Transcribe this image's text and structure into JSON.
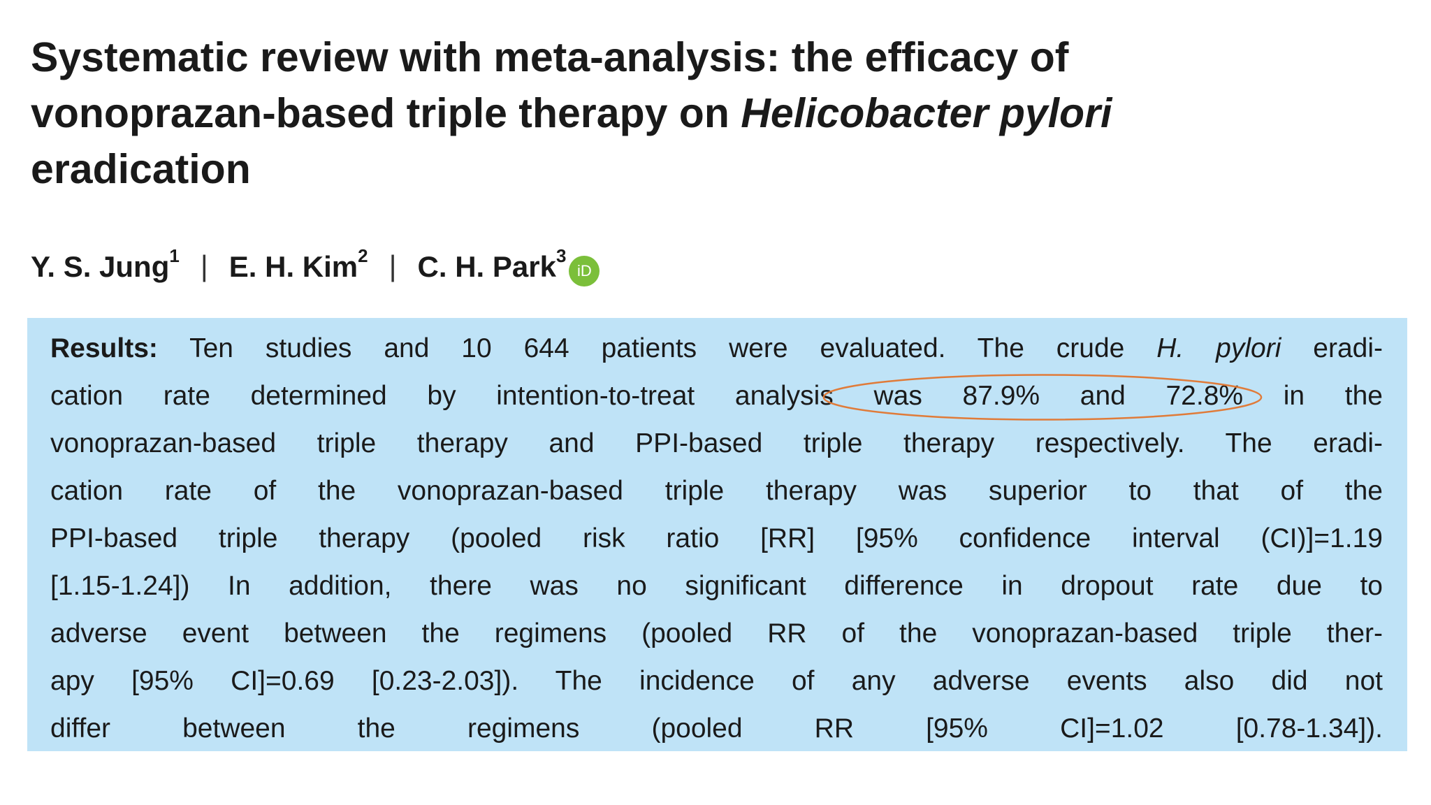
{
  "header": {
    "title_lines": [
      "Systematic review with meta-analysis: the efficacy of",
      [
        "vonoprazan-based triple therapy on ",
        "Helicobacter pylori"
      ],
      "eradication"
    ]
  },
  "authors": [
    {
      "name": "Y. S. Jung",
      "affiliation": "1"
    },
    {
      "name": "E. H. Kim",
      "affiliation": "2"
    },
    {
      "name": "C. H. Park",
      "affiliation": "3"
    }
  ],
  "orcid_icon": "iD",
  "results": {
    "lines": [
      [
        "Results:",
        " Ten studies and 10 644 patients were evaluated. The crude ",
        "H. pylori",
        " eradi-"
      ],
      [
        "cation rate determined by intention-to-treat analysis",
        " was 87.9% and 72.8%",
        " in the"
      ],
      [
        "vonoprazan-based triple therapy and PPI-based triple therapy respectively. The eradi-"
      ],
      [
        "cation rate of the vonoprazan-based triple therapy was superior to that of the"
      ],
      [
        "PPI-based triple therapy (pooled risk ratio [RR] [95% confidence interval (CI)]=1.19"
      ],
      [
        "[1.15-1.24]) In addition, there was no significant difference in dropout rate due to"
      ],
      [
        "adverse event between the regimens (pooled RR of the vonoprazan-based triple ther-"
      ],
      [
        "apy [95% CI]=0.69 [0.23-2.03]). The incidence of any adverse events also did not"
      ],
      [
        "differ between the regimens (pooled RR [95% CI]=1.02 [0.78-1.34])."
      ]
    ]
  }
}
